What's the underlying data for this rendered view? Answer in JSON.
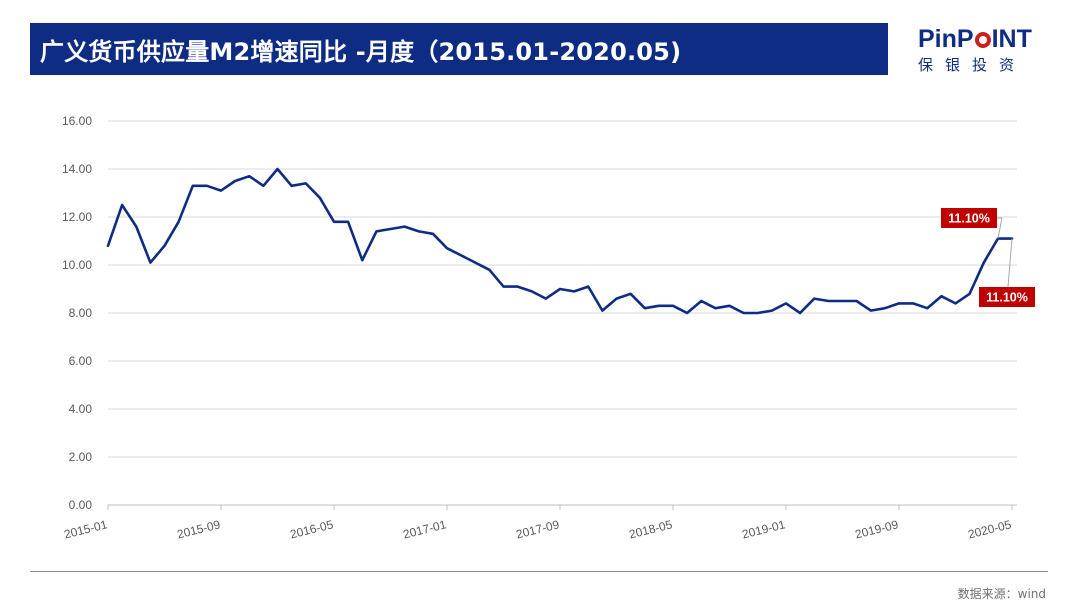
{
  "header": {
    "title": "广义货币供应量M2增速同比 -月度（2015.01-2020.05)"
  },
  "logo": {
    "brand_prefix": "PinP",
    "brand_suffix": "INT",
    "subtitle": "保银投资",
    "colors": {
      "brand": "#0f2c84",
      "accent": "#cc1f1f"
    }
  },
  "footer": {
    "source": "数据来源：wind"
  },
  "chart_data": {
    "type": "line",
    "title": "",
    "xlabel": "",
    "ylabel": "",
    "ylim": [
      0,
      16
    ],
    "yticks": [
      "0.00",
      "2.00",
      "4.00",
      "6.00",
      "8.00",
      "10.00",
      "12.00",
      "14.00",
      "16.00"
    ],
    "xtick_labels": [
      "2015-01",
      "2015-09",
      "2016-05",
      "2017-01",
      "2017-09",
      "2018-05",
      "2019-01",
      "2019-09",
      "2020-05"
    ],
    "grid": true,
    "line_color": "#0f2c84",
    "label_color": "#c00000",
    "series": [
      {
        "values": [
          10.8,
          12.5,
          11.6,
          10.1,
          10.8,
          11.8,
          13.3,
          13.3,
          13.1,
          13.5,
          13.7,
          13.3,
          14.0,
          13.3,
          13.4,
          12.8,
          11.8,
          11.8,
          10.2,
          11.4,
          11.5,
          11.6,
          11.4,
          11.3,
          10.7,
          10.4,
          10.1,
          9.8,
          9.1,
          9.1,
          8.9,
          8.6,
          9.0,
          8.9,
          9.1,
          8.1,
          8.6,
          8.8,
          8.2,
          8.3,
          8.3,
          8.0,
          8.5,
          8.2,
          8.3,
          8.0,
          8.0,
          8.1,
          8.4,
          8.0,
          8.6,
          8.5,
          8.5,
          8.5,
          8.1,
          8.2,
          8.4,
          8.4,
          8.2,
          8.7,
          8.4,
          8.8,
          10.1,
          11.1,
          11.1
        ]
      }
    ],
    "annotations": [
      "11.10%",
      "11.10%"
    ]
  }
}
